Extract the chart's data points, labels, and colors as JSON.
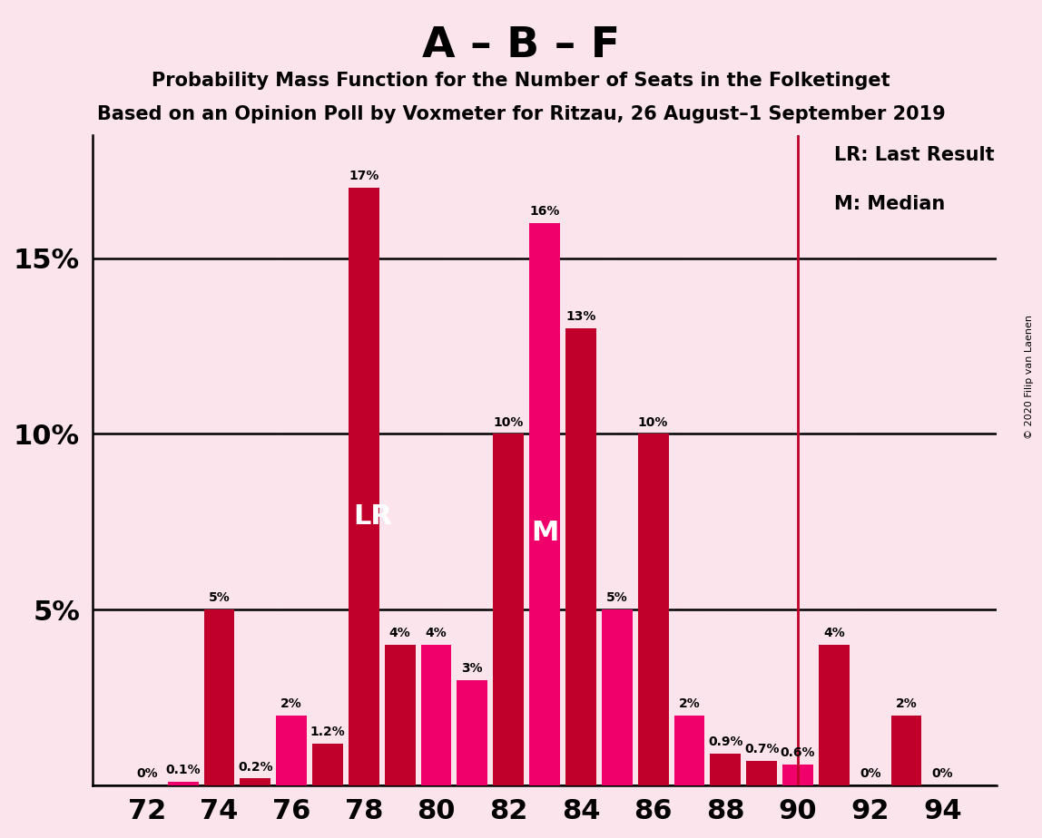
{
  "title1": "A – B – F",
  "title2": "Probability Mass Function for the Number of Seats in the Folketinget",
  "title3": "Based on an Opinion Poll by Voxmeter for Ritzau, 26 August–1 September 2019",
  "copyright": "© 2020 Filip van Laenen",
  "legend_lr": "LR: Last Result",
  "legend_m": "M: Median",
  "background_color": "#fce4ec",
  "bar_color_dark": "#c0002a",
  "bar_color_pink": "#f0006a",
  "vline_color": "#c0002a",
  "x_ticks": [
    72,
    74,
    76,
    78,
    80,
    82,
    84,
    86,
    88,
    90,
    92,
    94
  ],
  "seats": [
    72,
    73,
    74,
    75,
    76,
    77,
    78,
    79,
    80,
    81,
    82,
    83,
    84,
    85,
    86,
    87,
    88,
    89,
    90,
    91,
    92,
    93,
    94
  ],
  "values": [
    0.0,
    0.1,
    5.0,
    0.2,
    2.0,
    1.2,
    17.0,
    4.0,
    4.0,
    3.0,
    10.0,
    16.0,
    13.0,
    5.0,
    10.0,
    2.0,
    0.9,
    0.7,
    0.6,
    4.0,
    0.0,
    2.0,
    0.0
  ],
  "labels": [
    "0%",
    "0.1%",
    "5%",
    "0.2%",
    "2%",
    "1.2%",
    "17%",
    "4%",
    "4%",
    "3%",
    "10%",
    "16%",
    "13%",
    "5%",
    "10%",
    "2%",
    "0.9%",
    "0.7%",
    "0.6%",
    "4%",
    "0%",
    "2%",
    "0%"
  ],
  "colors_map": {
    "72": "#c0002a",
    "73": "#f0006a",
    "74": "#c0002a",
    "75": "#c0002a",
    "76": "#f0006a",
    "77": "#c0002a",
    "78": "#c0002a",
    "79": "#c0002a",
    "80": "#f0006a",
    "81": "#f0006a",
    "82": "#c0002a",
    "83": "#f0006a",
    "84": "#c0002a",
    "85": "#f0006a",
    "86": "#c0002a",
    "87": "#f0006a",
    "88": "#c0002a",
    "89": "#c0002a",
    "90": "#f0006a",
    "91": "#c0002a",
    "92": "#f0006a",
    "93": "#c0002a",
    "94": "#c0002a"
  },
  "lr_seat": 78,
  "median_seat": 83,
  "vline_seat": 90,
  "xlim": [
    70.5,
    95.5
  ],
  "ylim": [
    0,
    18.5
  ]
}
